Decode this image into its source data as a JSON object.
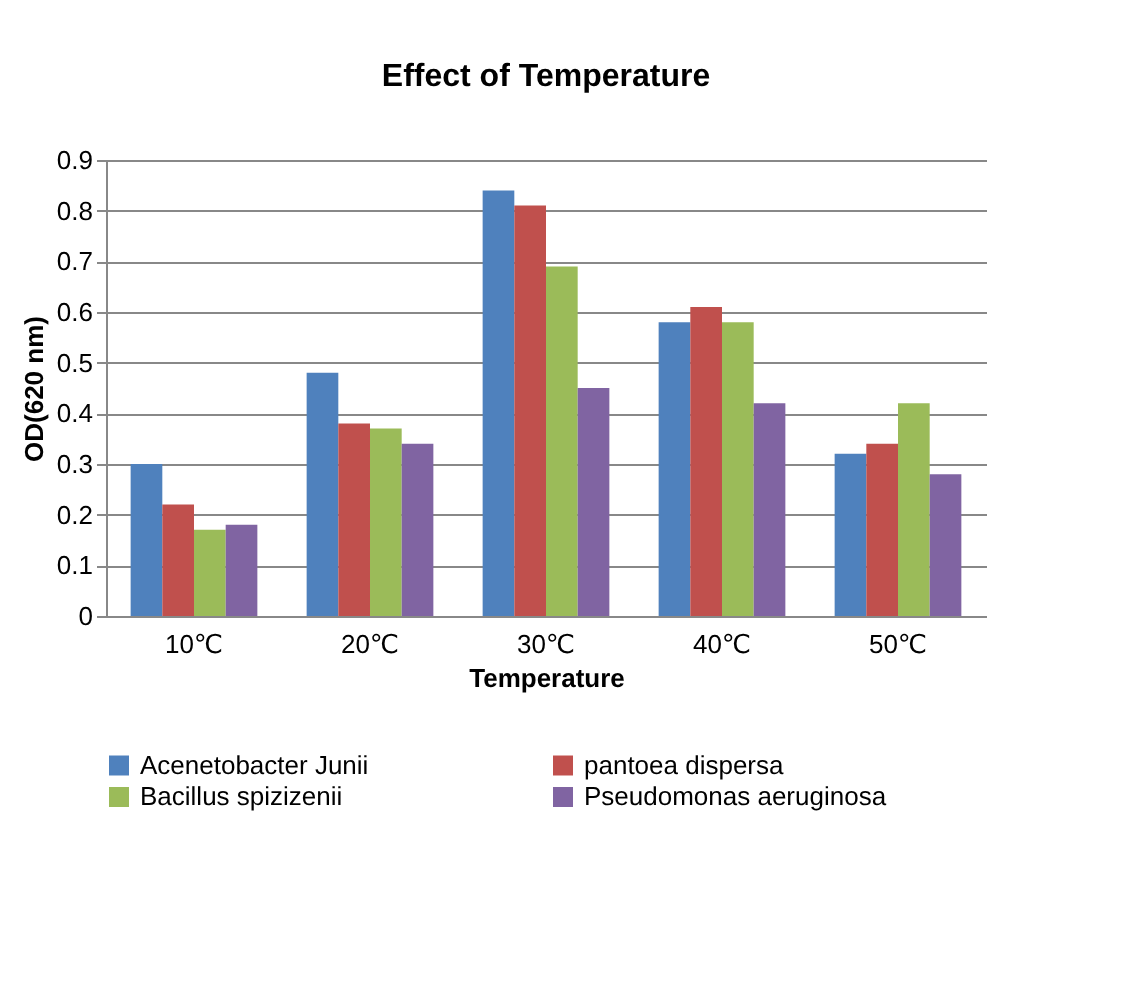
{
  "chart_data": {
    "type": "bar",
    "title": "Effect of Temperature",
    "xlabel": "Temperature",
    "ylabel": "OD(620 nm)",
    "categories": [
      "10℃",
      "20℃",
      "30℃",
      "40℃",
      "50℃"
    ],
    "series": [
      {
        "name": "Acenetobacter Junii",
        "color": "#4f81bd",
        "values": [
          0.3,
          0.48,
          0.84,
          0.58,
          0.32
        ]
      },
      {
        "name": "pantoea dispersa",
        "color": "#c0504d",
        "values": [
          0.22,
          0.38,
          0.81,
          0.61,
          0.34
        ]
      },
      {
        "name": "Bacillus spizizenii",
        "color": "#9bbb59",
        "values": [
          0.17,
          0.37,
          0.69,
          0.58,
          0.42
        ]
      },
      {
        "name": "Pseudomonas aeruginosa",
        "color": "#8064a2",
        "values": [
          0.18,
          0.34,
          0.45,
          0.42,
          0.28
        ]
      }
    ],
    "ylim": [
      0,
      0.9
    ],
    "yticks": [
      0,
      0.1,
      0.2,
      0.3,
      0.4,
      0.5,
      0.6,
      0.7,
      0.8,
      0.9
    ],
    "grid": "y",
    "legend": "bottom"
  }
}
